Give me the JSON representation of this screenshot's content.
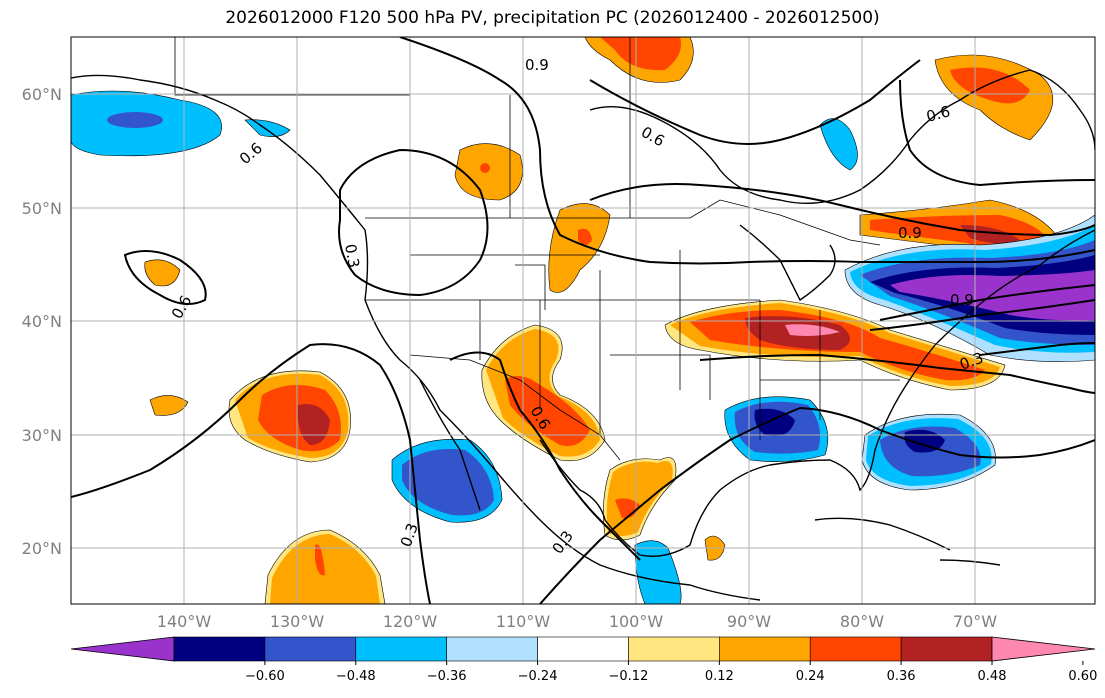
{
  "title": "2026012000 F120 500 hPa PV, precipitation PC (2026012400 - 2026012500)",
  "lat_labels": [
    "60°N",
    "50°N",
    "40°N",
    "30°N",
    "20°N"
  ],
  "lon_labels": [
    "140°W",
    "130°W",
    "120°W",
    "110°W",
    "100°W",
    "90°W",
    "80°W",
    "70°W"
  ],
  "colorbar": {
    "ticks": [
      "−0.60",
      "−0.48",
      "−0.36",
      "−0.24",
      "−0.12",
      "0.12",
      "0.24",
      "0.36",
      "0.48",
      "0.60"
    ],
    "colors": [
      "#9933cc",
      "#000080",
      "#3355cc",
      "#00bfff",
      "#b0e0ff",
      "#ffffff",
      "#ffe680",
      "#ffa500",
      "#ff4500",
      "#b22222",
      "#ff88b0"
    ]
  },
  "contour_labels": [
    "0.9",
    "0.6",
    "0.6",
    "0.9",
    "0.3",
    "0.6",
    "0.6",
    "0.9",
    "0.6",
    "0.3",
    "0.3",
    "0.3"
  ]
}
